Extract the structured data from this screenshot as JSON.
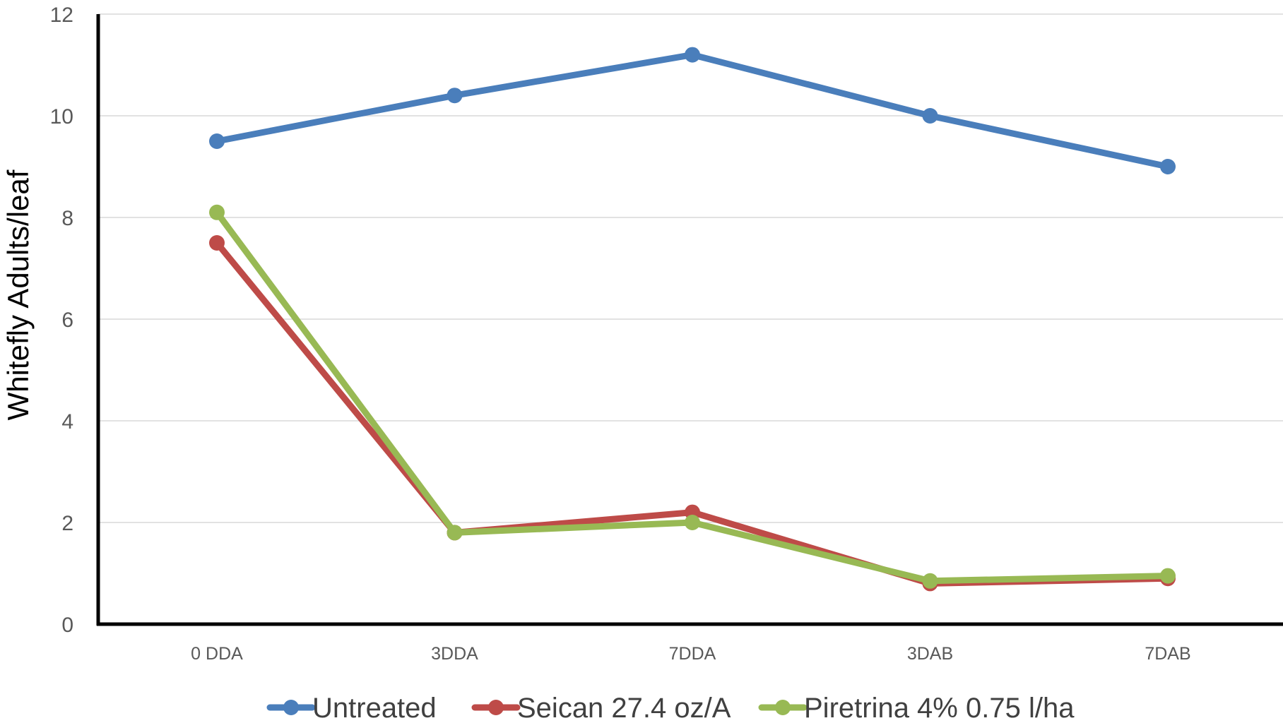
{
  "chart_data": {
    "type": "line",
    "title": "",
    "xlabel": "",
    "ylabel": "Whitefly Adults/leaf",
    "categories": [
      "0 DDA",
      "3DDA",
      "7DDA",
      "3DAB",
      "7DAB"
    ],
    "ylim": [
      0,
      12
    ],
    "yticks": [
      0,
      2,
      4,
      6,
      8,
      10,
      12
    ],
    "grid": "horizontal",
    "legend_position": "bottom",
    "series": [
      {
        "name": "Untreated",
        "color": "#4A7EBB",
        "values": [
          9.5,
          10.4,
          11.2,
          10.0,
          9.0
        ]
      },
      {
        "name": "Seican 27.4 oz/A",
        "color": "#BE4B48",
        "values": [
          7.5,
          1.8,
          2.2,
          0.8,
          0.9
        ]
      },
      {
        "name": "Piretrina 4% 0.75 l/ha",
        "color": "#98B954",
        "values": [
          8.1,
          1.8,
          2.0,
          0.85,
          0.95
        ]
      }
    ]
  }
}
